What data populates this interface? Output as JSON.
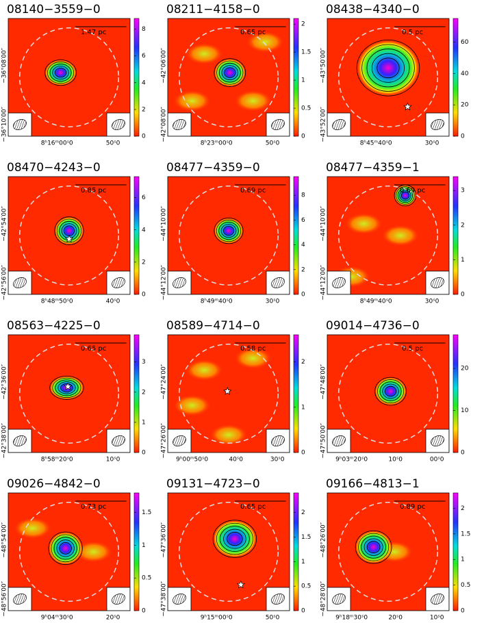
{
  "chart_data": [
    {
      "type": "image",
      "title": "08140−3559−0",
      "scale_label": "1.47 pc",
      "clim": [
        0,
        8.8
      ],
      "cticks": [
        0,
        2,
        4,
        6,
        8
      ],
      "dec_labels": [
        "−36°08′00″",
        "−36°10′00″"
      ],
      "ra_labels": [
        "8ʰ16ᵐ00ˢ0",
        "50ˢ0"
      ]
    },
    {
      "type": "image",
      "title": "08211−4158−0",
      "scale_label": "0.65 pc",
      "clim": [
        0,
        2.1
      ],
      "cticks": [
        0,
        0.5,
        1,
        1.5,
        2
      ],
      "dec_labels": [
        "−42°06′00″",
        "−42°08′00″"
      ],
      "ra_labels": [
        "8ʰ23ᵐ00ˢ0",
        "50ˢ0"
      ]
    },
    {
      "type": "image",
      "title": "08438−4340−0",
      "scale_label": "0.5 pc",
      "clim": [
        0,
        75
      ],
      "cticks": [
        0,
        20,
        40,
        60
      ],
      "dec_labels": [
        "−43°50′00″",
        "−43°52′00″"
      ],
      "ra_labels": [
        "8ʰ45ᵐ40ˢ0",
        "30ˢ0"
      ]
    },
    {
      "type": "image",
      "title": "08470−4243−0",
      "scale_label": "0.85 pc",
      "clim": [
        0,
        7.3
      ],
      "cticks": [
        0,
        2,
        4,
        6
      ],
      "dec_labels": [
        "−42°54′00″",
        "−42°56′00″"
      ],
      "ra_labels": [
        "8ʰ48ᵐ50ˢ0",
        "40ˢ0"
      ]
    },
    {
      "type": "image",
      "title": "08477−4359−0",
      "scale_label": "0.69 pc",
      "clim": [
        0,
        9.5
      ],
      "cticks": [
        0,
        2,
        4,
        6,
        8
      ],
      "dec_labels": [
        "−44°10′00″",
        "−44°12′00″"
      ],
      "ra_labels": [
        "8ʰ49ᵐ40ˢ0",
        "30ˢ0"
      ]
    },
    {
      "type": "image",
      "title": "08477−4359−1",
      "scale_label": "0.69 pc",
      "clim": [
        0,
        3.4
      ],
      "cticks": [
        0,
        1,
        2,
        3
      ],
      "dec_labels": [
        "−44°10′00″",
        "−44°12′00″"
      ],
      "ra_labels": [
        "8ʰ49ᵐ40ˢ0",
        "30ˢ0"
      ]
    },
    {
      "type": "image",
      "title": "08563−4225−0",
      "scale_label": "0.65 pc",
      "clim": [
        0,
        3.9
      ],
      "cticks": [
        0,
        1,
        2,
        3
      ],
      "dec_labels": [
        "−42°36′00″",
        "−42°38′00″"
      ],
      "ra_labels": [
        "8ʰ58ᵐ20ˢ0",
        "10ˢ0"
      ]
    },
    {
      "type": "image",
      "title": "08589−4714−0",
      "scale_label": "0.58 pc",
      "clim": [
        0,
        2.6
      ],
      "cticks": [
        0,
        1,
        2
      ],
      "dec_labels": [
        "−47°24′00″",
        "−47°26′00″"
      ],
      "ra_labels": [
        "9ʰ00ᵐ50ˢ0",
        "40ˢ0",
        "30ˢ0"
      ]
    },
    {
      "type": "image",
      "title": "09014−4736−0",
      "scale_label": "0.5 pc",
      "clim": [
        0,
        28
      ],
      "cticks": [
        0,
        10,
        20
      ],
      "dec_labels": [
        "−47°48′00″",
        "−47°50′00″"
      ],
      "ra_labels": [
        "9ʰ03ᵐ20ˢ0",
        "10ˢ0",
        "00ˢ0"
      ]
    },
    {
      "type": "image",
      "title": "09026−4842−0",
      "scale_label": "0.73 pc",
      "clim": [
        0,
        1.8
      ],
      "cticks": [
        0,
        0.5,
        1,
        1.5
      ],
      "dec_labels": [
        "−48°54′00″",
        "−48°56′00″"
      ],
      "ra_labels": [
        "9ʰ04ᵐ30ˢ0",
        "20ˢ0"
      ]
    },
    {
      "type": "image",
      "title": "09131−4723−0",
      "scale_label": "0.65 pc",
      "clim": [
        0,
        2.4
      ],
      "cticks": [
        0,
        0.5,
        1,
        1.5,
        2
      ],
      "dec_labels": [
        "−47°36′00″",
        "−47°38′00″"
      ],
      "ra_labels": [
        "9ʰ15ᵐ00ˢ0",
        "50ˢ0"
      ]
    },
    {
      "type": "image",
      "title": "09166−4813−1",
      "scale_label": "0.89 pc",
      "clim": [
        0,
        2.3
      ],
      "cticks": [
        0,
        0.5,
        1,
        1.5,
        2
      ],
      "dec_labels": [
        "−48°26′00″",
        "−48°28′00″"
      ],
      "ra_labels": [
        "9ʰ18ᵐ30ˢ0",
        "20ˢ0",
        "10ˢ0"
      ]
    }
  ]
}
